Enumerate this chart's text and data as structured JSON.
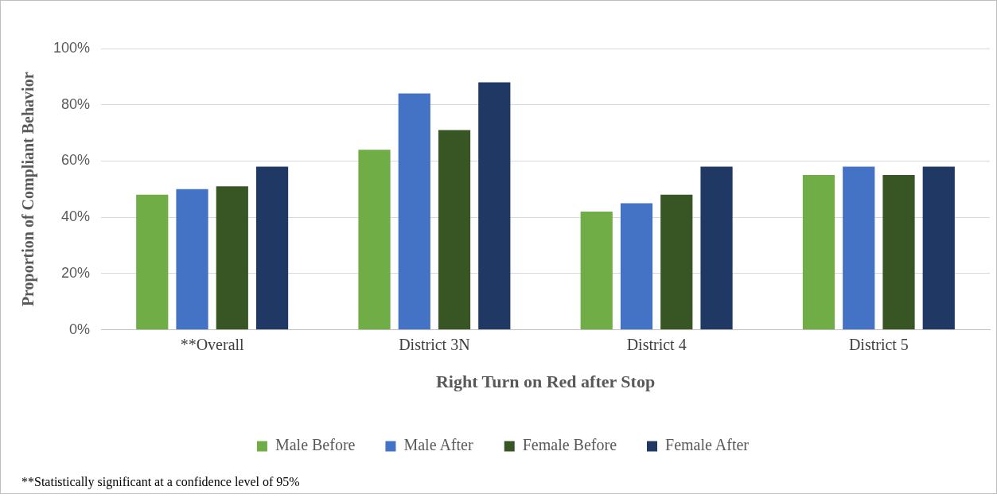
{
  "chart_data": {
    "type": "bar",
    "xlabel": "Right Turn on Red after Stop",
    "ylabel": "Proportion of Compliant Behavior",
    "categories": [
      "**Overall",
      "District 3N",
      "District 4",
      "District 5"
    ],
    "series": [
      {
        "name": "Male Before",
        "color": "#70ad47",
        "values": [
          48,
          64,
          42,
          55
        ]
      },
      {
        "name": "Male After",
        "color": "#4472c4",
        "values": [
          50,
          84,
          45,
          58
        ]
      },
      {
        "name": "Female Before",
        "color": "#375623",
        "values": [
          51,
          71,
          48,
          55
        ]
      },
      {
        "name": "Female After",
        "color": "#203864",
        "values": [
          58,
          88,
          58,
          58
        ]
      }
    ],
    "ylim": [
      0,
      100
    ],
    "yticks": [
      {
        "value": 0,
        "label": "0%"
      },
      {
        "value": 20,
        "label": "20%"
      },
      {
        "value": 40,
        "label": "40%"
      },
      {
        "value": 60,
        "label": "60%"
      },
      {
        "value": 80,
        "label": "80%"
      },
      {
        "value": 100,
        "label": "100%"
      }
    ],
    "grid": "y",
    "legend": "bottom",
    "annotations": [
      "**Statistically significant at a confidence level of 95%"
    ]
  }
}
